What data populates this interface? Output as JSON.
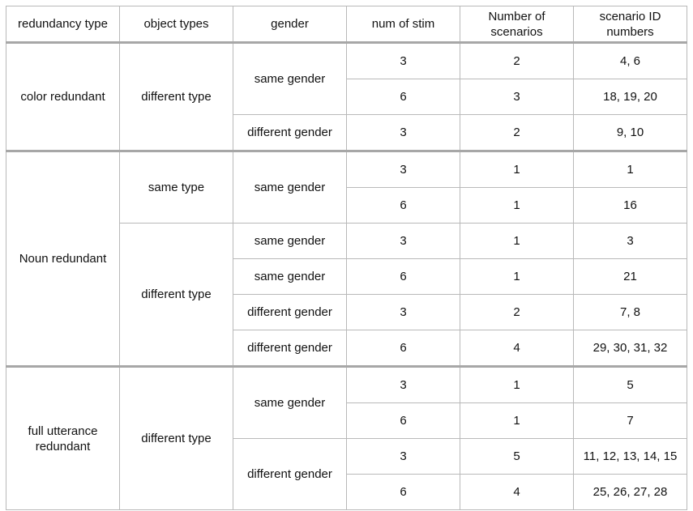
{
  "headers": [
    "redundancy type",
    "object types",
    "gender",
    "num of stim",
    "Number of scenarios",
    "scenario ID numbers"
  ],
  "groups": [
    {
      "redundancy": "color redundant",
      "object_types": [
        {
          "type": "different type",
          "genders": [
            {
              "gender": "same gender",
              "rows": [
                {
                  "stim": "3",
                  "scenarios": "2",
                  "ids": "4, 6"
                },
                {
                  "stim": "6",
                  "scenarios": "3",
                  "ids": "18, 19, 20"
                }
              ]
            },
            {
              "gender": "different gender",
              "rows": [
                {
                  "stim": "3",
                  "scenarios": "2",
                  "ids": "9, 10"
                }
              ]
            }
          ]
        }
      ]
    },
    {
      "redundancy": "Noun redundant",
      "object_types": [
        {
          "type": "same type",
          "genders": [
            {
              "gender": "same gender",
              "rows": [
                {
                  "stim": "3",
                  "scenarios": "1",
                  "ids": "1"
                },
                {
                  "stim": "6",
                  "scenarios": "1",
                  "ids": "16"
                }
              ]
            }
          ]
        },
        {
          "type": "different type",
          "genders": [
            {
              "gender": "same gender",
              "rows": [
                {
                  "stim": "3",
                  "scenarios": "1",
                  "ids": "3"
                }
              ]
            },
            {
              "gender": "same gender",
              "rows": [
                {
                  "stim": "6",
                  "scenarios": "1",
                  "ids": "21"
                }
              ]
            },
            {
              "gender": "different gender",
              "rows": [
                {
                  "stim": "3",
                  "scenarios": "2",
                  "ids": "7, 8"
                }
              ]
            },
            {
              "gender": "different gender",
              "rows": [
                {
                  "stim": "6",
                  "scenarios": "4",
                  "ids": "29, 30, 31, 32"
                }
              ]
            }
          ]
        }
      ]
    },
    {
      "redundancy": "full utterance redundant",
      "object_types": [
        {
          "type": "different type",
          "genders": [
            {
              "gender": "same gender",
              "rows": [
                {
                  "stim": "3",
                  "scenarios": "1",
                  "ids": "5"
                },
                {
                  "stim": "6",
                  "scenarios": "1",
                  "ids": "7"
                }
              ]
            },
            {
              "gender": "different gender",
              "rows": [
                {
                  "stim": "3",
                  "scenarios": "5",
                  "ids": "11, 12, 13, 14, 15"
                },
                {
                  "stim": "6",
                  "scenarios": "4",
                  "ids": "25, 26, 27, 28"
                }
              ]
            }
          ]
        }
      ]
    }
  ]
}
